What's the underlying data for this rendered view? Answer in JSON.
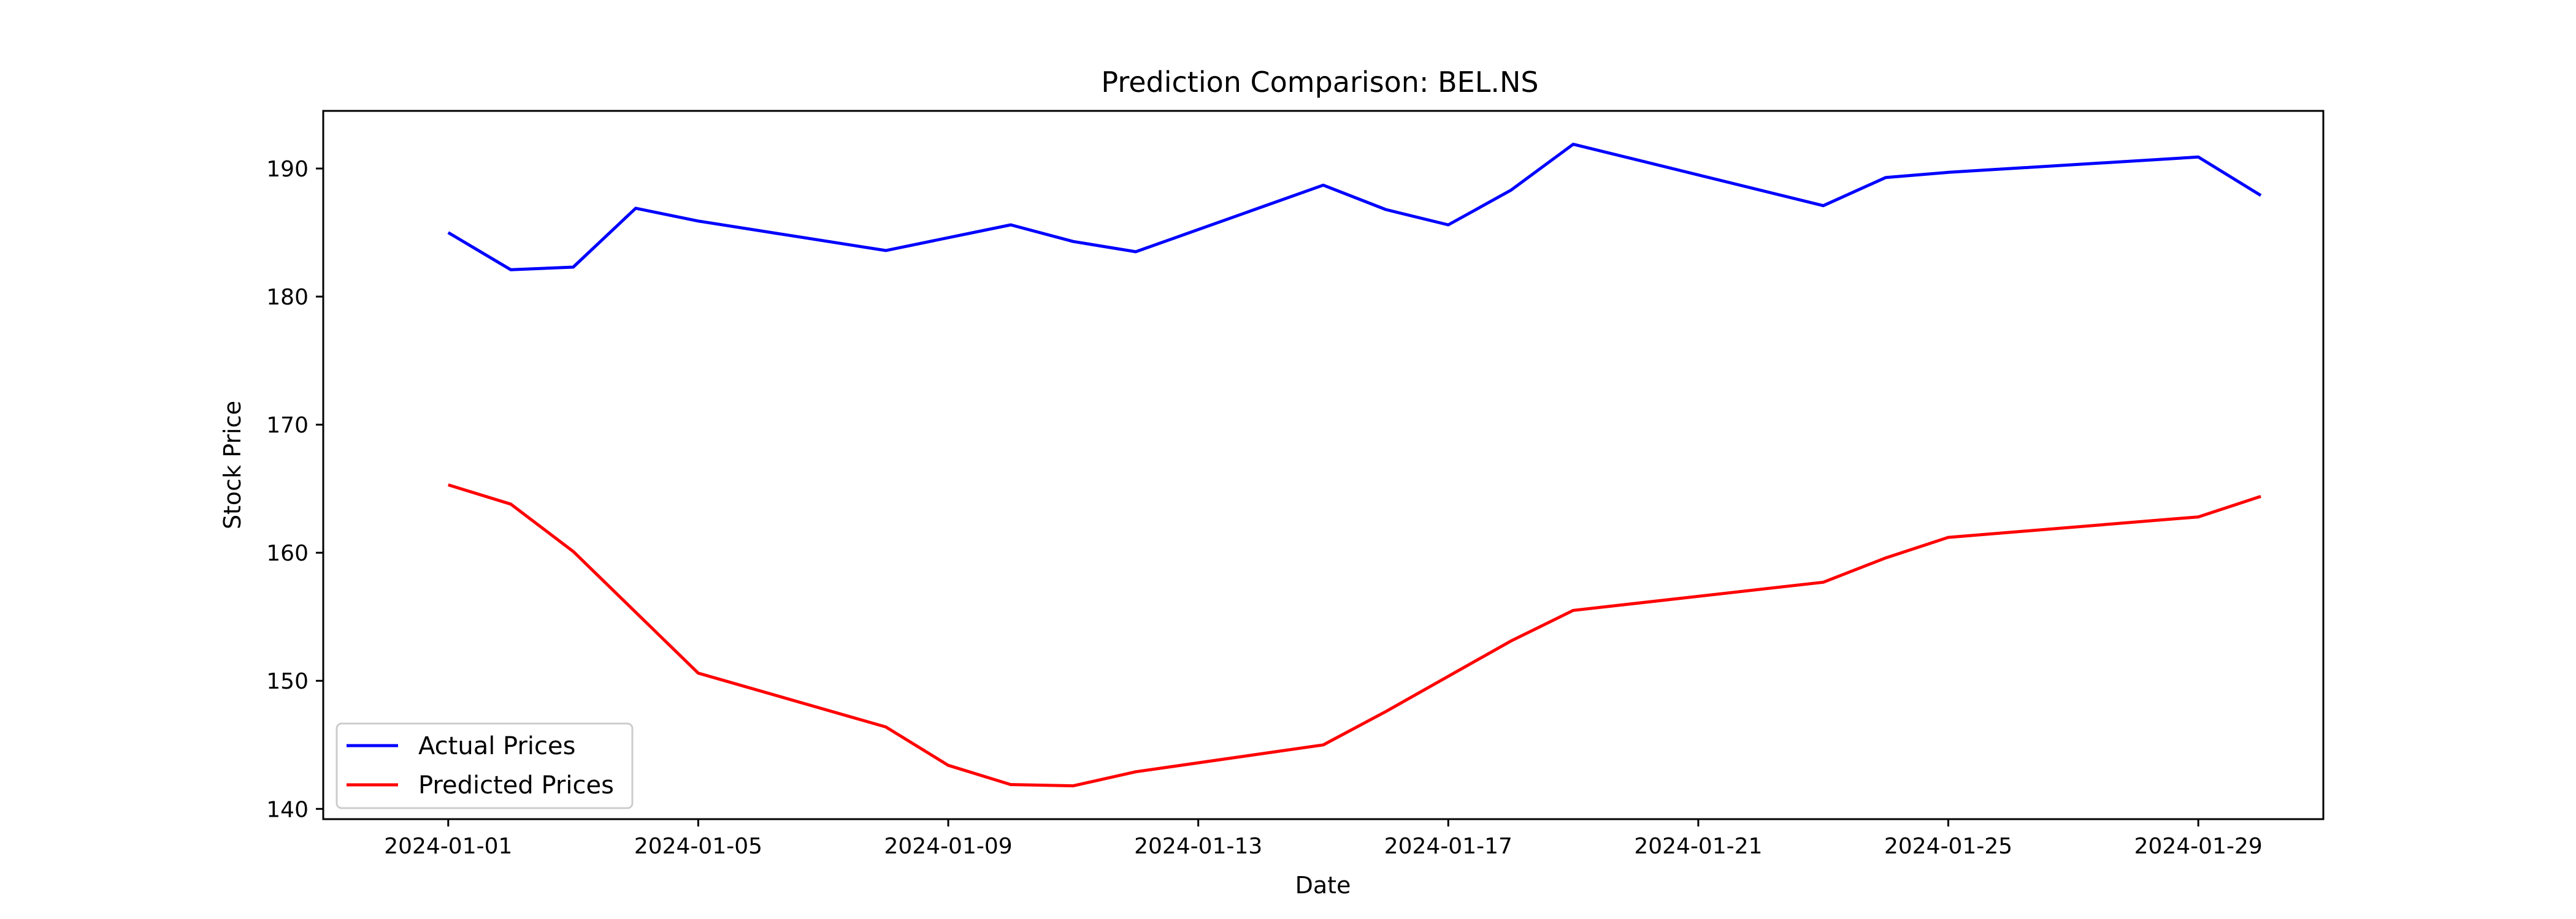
{
  "chart_data": {
    "type": "line",
    "title": "Prediction Comparison: BEL.NS",
    "xlabel": "Date",
    "ylabel": "Stock Price",
    "xlim": [
      "2023-12-30",
      "2024-01-31"
    ],
    "ylim": [
      139.2,
      194.5
    ],
    "x_ticks": [
      "2024-01-01",
      "2024-01-05",
      "2024-01-09",
      "2024-01-13",
      "2024-01-17",
      "2024-01-21",
      "2024-01-25",
      "2024-01-29"
    ],
    "y_ticks": [
      140,
      150,
      160,
      170,
      180,
      190
    ],
    "grid": false,
    "legend_position": "lower-left",
    "series": [
      {
        "name": "Actual Prices",
        "color": "#0000ff",
        "points": [
          [
            "2024-01-01",
            185.0
          ],
          [
            "2024-01-02",
            182.1
          ],
          [
            "2024-01-03",
            182.3
          ],
          [
            "2024-01-04",
            186.9
          ],
          [
            "2024-01-05",
            185.9
          ],
          [
            "2024-01-08",
            183.6
          ],
          [
            "2024-01-10",
            185.6
          ],
          [
            "2024-01-11",
            184.3
          ],
          [
            "2024-01-12",
            183.5
          ],
          [
            "2024-01-15",
            188.7
          ],
          [
            "2024-01-16",
            186.8
          ],
          [
            "2024-01-17",
            185.6
          ],
          [
            "2024-01-18",
            188.3
          ],
          [
            "2024-01-19",
            191.9
          ],
          [
            "2024-01-23",
            187.1
          ],
          [
            "2024-01-24",
            189.3
          ],
          [
            "2024-01-25",
            189.7
          ],
          [
            "2024-01-29",
            190.9
          ],
          [
            "2024-01-30",
            187.9
          ]
        ]
      },
      {
        "name": "Predicted Prices",
        "color": "#ff0000",
        "points": [
          [
            "2024-01-01",
            165.3
          ],
          [
            "2024-01-02",
            163.8
          ],
          [
            "2024-01-03",
            160.1
          ],
          [
            "2024-01-05",
            150.6
          ],
          [
            "2024-01-08",
            146.4
          ],
          [
            "2024-01-09",
            143.4
          ],
          [
            "2024-01-10",
            141.9
          ],
          [
            "2024-01-11",
            141.8
          ],
          [
            "2024-01-12",
            142.9
          ],
          [
            "2024-01-15",
            145.0
          ],
          [
            "2024-01-16",
            147.6
          ],
          [
            "2024-01-18",
            153.1
          ],
          [
            "2024-01-19",
            155.5
          ],
          [
            "2024-01-23",
            157.7
          ],
          [
            "2024-01-24",
            159.6
          ],
          [
            "2024-01-25",
            161.2
          ],
          [
            "2024-01-29",
            162.8
          ],
          [
            "2024-01-30",
            164.4
          ]
        ]
      }
    ]
  }
}
